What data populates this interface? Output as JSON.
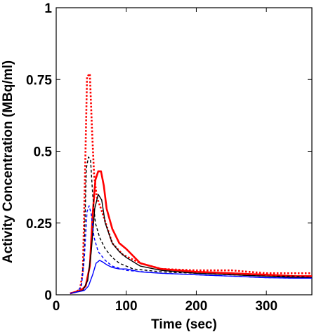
{
  "chart_data": {
    "type": "line",
    "title": "",
    "xlabel": "Time (sec)",
    "ylabel": "Activity Concentration (MBq/ml)",
    "xlim": [
      0,
      365
    ],
    "ylim": [
      0,
      1
    ],
    "xticks": [
      0,
      100,
      200,
      300
    ],
    "xtick_labels": [
      "0",
      "100",
      "200",
      "300"
    ],
    "yticks": [
      0,
      0.25,
      0.5,
      0.75,
      1
    ],
    "ytick_labels": [
      "0",
      "0.25",
      "0.5",
      "0.75",
      "1"
    ],
    "grid": false,
    "legend": "none",
    "series": [
      {
        "color": "#ff0000",
        "style": "dotted",
        "x": [
          20,
          28,
          34,
          38,
          41,
          44,
          48,
          51,
          54,
          58,
          64,
          72,
          80,
          95,
          120,
          150,
          200,
          250,
          300,
          340,
          365
        ],
        "y": [
          0.005,
          0.01,
          0.02,
          0.08,
          0.4,
          0.76,
          0.77,
          0.58,
          0.42,
          0.34,
          0.3,
          0.24,
          0.18,
          0.14,
          0.11,
          0.09,
          0.085,
          0.085,
          0.075,
          0.075,
          0.075
        ]
      },
      {
        "color": "#ff0000",
        "style": "solid",
        "x": [
          20,
          35,
          42,
          48,
          52,
          56,
          60,
          64,
          68,
          72,
          80,
          90,
          100,
          120,
          150,
          200,
          250,
          300,
          340,
          365
        ],
        "y": [
          0.005,
          0.015,
          0.03,
          0.1,
          0.28,
          0.4,
          0.43,
          0.43,
          0.38,
          0.3,
          0.23,
          0.18,
          0.16,
          0.11,
          0.09,
          0.08,
          0.075,
          0.07,
          0.065,
          0.065
        ]
      },
      {
        "color": "#000000",
        "style": "dashed",
        "x": [
          20,
          30,
          36,
          40,
          43,
          46,
          49,
          52,
          56,
          62,
          70,
          80,
          90,
          110,
          150,
          200,
          250,
          300,
          340,
          365
        ],
        "y": [
          0.005,
          0.01,
          0.03,
          0.15,
          0.44,
          0.48,
          0.47,
          0.35,
          0.25,
          0.2,
          0.16,
          0.13,
          0.11,
          0.09,
          0.08,
          0.075,
          0.07,
          0.065,
          0.065,
          0.06
        ]
      },
      {
        "color": "#000000",
        "style": "solid",
        "x": [
          20,
          38,
          45,
          50,
          55,
          60,
          65,
          70,
          80,
          90,
          100,
          120,
          150,
          200,
          250,
          300,
          340,
          365
        ],
        "y": [
          0.005,
          0.015,
          0.05,
          0.15,
          0.3,
          0.35,
          0.33,
          0.25,
          0.18,
          0.15,
          0.13,
          0.1,
          0.085,
          0.075,
          0.07,
          0.065,
          0.06,
          0.06
        ]
      },
      {
        "color": "#0000ff",
        "style": "dashed",
        "x": [
          20,
          30,
          36,
          40,
          44,
          47,
          50,
          54,
          60,
          70,
          80,
          100,
          150,
          200,
          250,
          300,
          340,
          365
        ],
        "y": [
          0.005,
          0.01,
          0.03,
          0.12,
          0.29,
          0.31,
          0.28,
          0.2,
          0.15,
          0.12,
          0.1,
          0.085,
          0.075,
          0.07,
          0.065,
          0.06,
          0.058,
          0.058
        ]
      },
      {
        "color": "#0000ff",
        "style": "solid",
        "x": [
          20,
          40,
          46,
          52,
          57,
          62,
          66,
          72,
          80,
          90,
          100,
          120,
          150,
          200,
          250,
          300,
          340,
          365
        ],
        "y": [
          0.005,
          0.015,
          0.03,
          0.07,
          0.11,
          0.12,
          0.115,
          0.105,
          0.095,
          0.09,
          0.09,
          0.08,
          0.075,
          0.07,
          0.065,
          0.06,
          0.058,
          0.058
        ]
      }
    ]
  }
}
